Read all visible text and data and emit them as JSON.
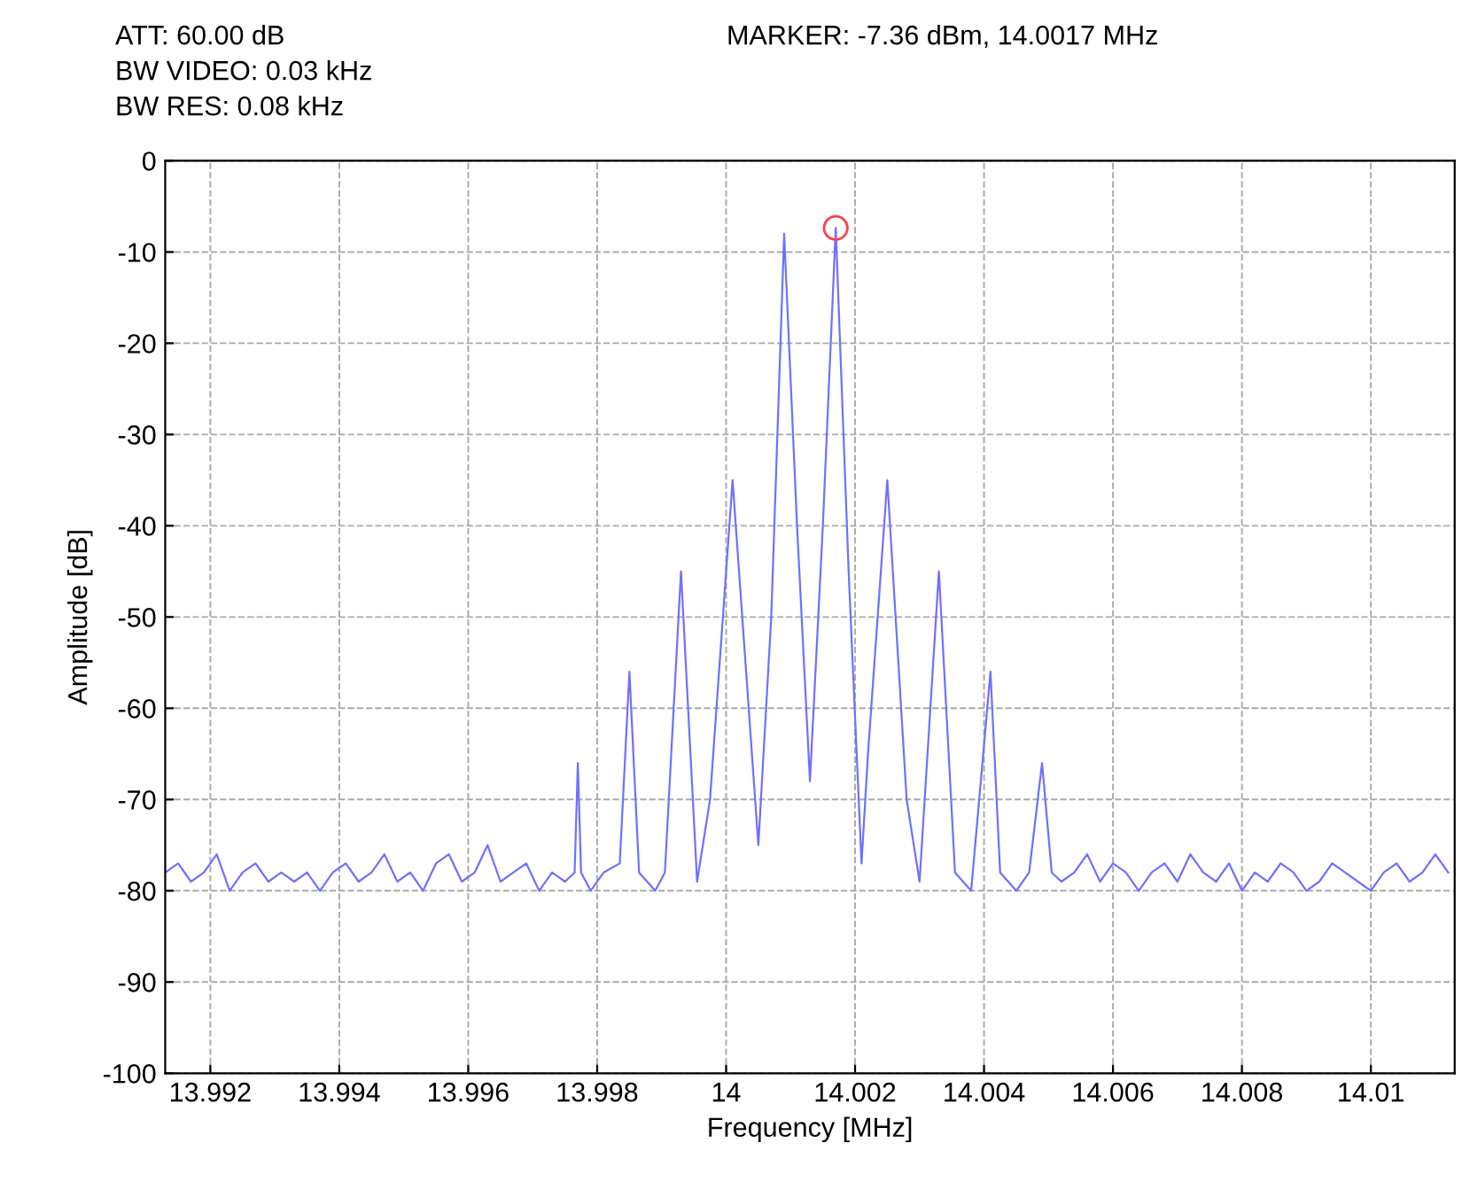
{
  "chart_data": {
    "type": "line",
    "xlabel": "Frequency [MHz]",
    "ylabel": "Amplitude [dB]",
    "annotations": [
      "ATT: 60.00 dB",
      "BW VIDEO: 0.03 kHz",
      "BW RES: 0.08 kHz",
      "MARKER: -7.36 dBm, 14.0017 MHz"
    ],
    "xlim": [
      13.9913,
      14.0113
    ],
    "xticks": [
      13.992,
      13.994,
      13.996,
      13.998,
      14,
      14.002,
      14.004,
      14.006,
      14.008,
      14.01
    ],
    "ylim": [
      -100,
      0
    ],
    "yticks": [
      -100,
      -90,
      -80,
      -70,
      -60,
      -50,
      -40,
      -30,
      -20,
      -10,
      0
    ],
    "grid": true,
    "series": [
      {
        "color": "#7070ff",
        "marker": "none",
        "line_style": "solid",
        "x": [
          13.9913,
          13.9915,
          13.9917,
          13.9919,
          13.9921,
          13.9923,
          13.9925,
          13.9927,
          13.9929,
          13.9931,
          13.9933,
          13.9935,
          13.9937,
          13.9939,
          13.9941,
          13.9943,
          13.9945,
          13.9947,
          13.9949,
          13.9951,
          13.9953,
          13.9955,
          13.9957,
          13.9959,
          13.9961,
          13.9963,
          13.9965,
          13.9967,
          13.9969,
          13.9971,
          13.9973,
          13.9975,
          13.99765,
          13.9977,
          13.99775,
          13.9979,
          13.9981,
          13.99835,
          13.9985,
          13.99865,
          13.9989,
          13.99905,
          13.9993,
          13.99955,
          13.99975,
          14.0001,
          14.0004,
          14.0005,
          14.0007,
          14.0009,
          14.0011,
          14.0013,
          14.0015,
          14.0017,
          14.0019,
          14.0021,
          14.0022,
          14.0025,
          14.0028,
          14.003,
          14.0033,
          14.00355,
          14.0038,
          14.0041,
          14.00425,
          14.0045,
          14.0047,
          14.0049,
          14.00505,
          14.0052,
          14.0054,
          14.0056,
          14.0058,
          14.006,
          14.0062,
          14.0064,
          14.0066,
          14.0068,
          14.007,
          14.0072,
          14.0074,
          14.0076,
          14.0078,
          14.008,
          14.0082,
          14.0084,
          14.0086,
          14.0088,
          14.009,
          14.0092,
          14.0094,
          14.0096,
          14.0098,
          14.01,
          14.0102,
          14.0104,
          14.0106,
          14.0108,
          14.011,
          14.0112
        ],
        "values": [
          -78,
          -77,
          -79,
          -78,
          -76,
          -80,
          -78,
          -77,
          -79,
          -78,
          -79,
          -78,
          -80,
          -78,
          -77,
          -79,
          -78,
          -76,
          -79,
          -78,
          -80,
          -77,
          -76,
          -79,
          -78,
          -75,
          -79,
          -78,
          -77,
          -80,
          -78,
          -79,
          -78,
          -66,
          -78,
          -80,
          -78,
          -77,
          -56,
          -78,
          -80,
          -78,
          -45,
          -79,
          -70,
          -35,
          -65,
          -75,
          -50,
          -8,
          -40,
          -68,
          -40,
          -7.36,
          -45,
          -77,
          -65,
          -35,
          -70,
          -79,
          -45,
          -78,
          -80,
          -56,
          -78,
          -80,
          -78,
          -66,
          -78,
          -79,
          -78,
          -76,
          -79,
          -77,
          -78,
          -80,
          -78,
          -77,
          -79,
          -76,
          -78,
          -79,
          -77,
          -80,
          -78,
          -79,
          -77,
          -78,
          -80,
          -79,
          -77,
          -78,
          -79,
          -80,
          -78,
          -77,
          -79,
          -78,
          -76,
          -78
        ]
      },
      {
        "type": "scatter",
        "color": "#ff4040",
        "marker": "circle",
        "x": [
          14.0017
        ],
        "values": [
          -7.36
        ]
      }
    ]
  }
}
